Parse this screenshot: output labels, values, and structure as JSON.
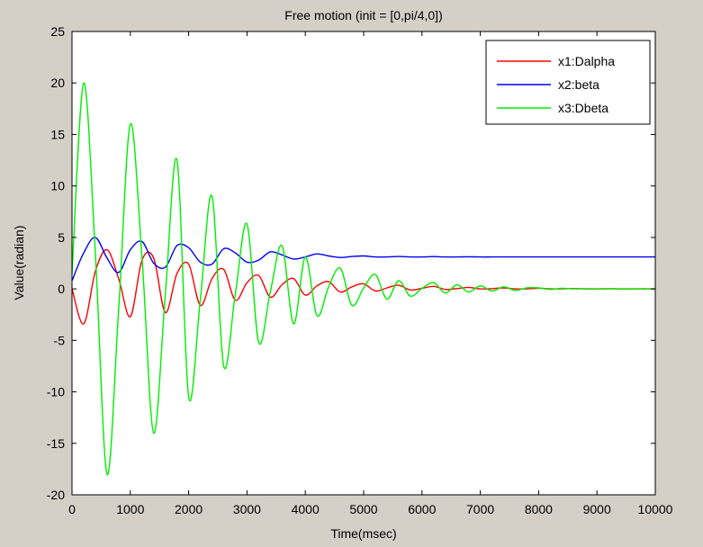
{
  "chart_data": {
    "type": "line",
    "title": "Free motion (init = [0,pi/4,0])",
    "xlabel": "Time(msec)",
    "ylabel": "Value(radian)",
    "xlim": [
      0,
      10000
    ],
    "ylim": [
      -20,
      25
    ],
    "x_ticks": [
      0,
      1000,
      2000,
      3000,
      4000,
      5000,
      6000,
      7000,
      8000,
      9000,
      10000
    ],
    "y_ticks": [
      -20,
      -15,
      -10,
      -5,
      0,
      5,
      10,
      15,
      20,
      25
    ],
    "grid": false,
    "legend_position": "top-right",
    "x": [
      0,
      200,
      400,
      600,
      800,
      1000,
      1200,
      1400,
      1600,
      1800,
      2000,
      2200,
      2400,
      2600,
      2800,
      3000,
      3200,
      3400,
      3600,
      3800,
      4000,
      4200,
      4400,
      4600,
      4800,
      5000,
      5200,
      5400,
      5600,
      5800,
      6000,
      6200,
      6400,
      6600,
      6800,
      7000,
      7200,
      7400,
      7600,
      7800,
      8000,
      8200,
      8400,
      8600,
      8800,
      9000,
      9200,
      9400,
      9600,
      9800,
      10000
    ],
    "series": [
      {
        "name": "x1:Dalpha",
        "color": "#ff0000",
        "values": [
          0,
          -3.4,
          1.7,
          3.8,
          1.0,
          -2.7,
          2.8,
          3.0,
          -2.3,
          1.5,
          2.4,
          -1.6,
          1.0,
          1.9,
          -1.1,
          0.6,
          1.3,
          -0.8,
          0.4,
          1.0,
          -0.6,
          0.3,
          0.7,
          -0.3,
          0.2,
          0.5,
          -0.2,
          0.1,
          0.35,
          -0.1,
          0.05,
          0.25,
          -0.05,
          0.03,
          0.15,
          0,
          0.02,
          0.1,
          0,
          0.01,
          0.06,
          0,
          0,
          0.04,
          0,
          0,
          0.02,
          0,
          0,
          0.01,
          0
        ]
      },
      {
        "name": "x2:beta",
        "color": "#0000ff",
        "values": [
          0.8,
          3.5,
          5.0,
          3.0,
          1.6,
          3.8,
          4.6,
          2.5,
          2.1,
          4.2,
          4.0,
          2.6,
          2.4,
          3.9,
          3.5,
          2.6,
          2.8,
          3.6,
          3.3,
          2.9,
          3.1,
          3.4,
          3.2,
          3.05,
          3.15,
          3.2,
          3.1,
          3.1,
          3.15,
          3.1,
          3.1,
          3.14,
          3.1,
          3.1,
          3.12,
          3.1,
          3.1,
          3.1,
          3.1,
          3.1,
          3.1,
          3.1,
          3.1,
          3.1,
          3.1,
          3.1,
          3.1,
          3.1,
          3.1,
          3.1,
          3.1
        ]
      },
      {
        "name": "x3:Dbeta",
        "color": "#00ee00",
        "values": [
          1.5,
          20.0,
          3.5,
          -18.0,
          -2.0,
          16.0,
          3.0,
          -14.0,
          -0.5,
          12.5,
          -10.5,
          -1.0,
          9.0,
          -7.5,
          -0.5,
          6.3,
          -5.2,
          -0.3,
          4.2,
          -3.4,
          3.1,
          -2.6,
          0.2,
          2.0,
          -1.6,
          0.1,
          1.4,
          -1.0,
          0.8,
          -0.7,
          0.05,
          0.6,
          -0.4,
          0.4,
          -0.3,
          0.3,
          -0.2,
          0.2,
          -0.15,
          0.1,
          0.1,
          -0.05,
          0.05,
          0,
          0.03,
          0,
          0.02,
          0,
          0,
          0,
          0
        ]
      }
    ]
  }
}
